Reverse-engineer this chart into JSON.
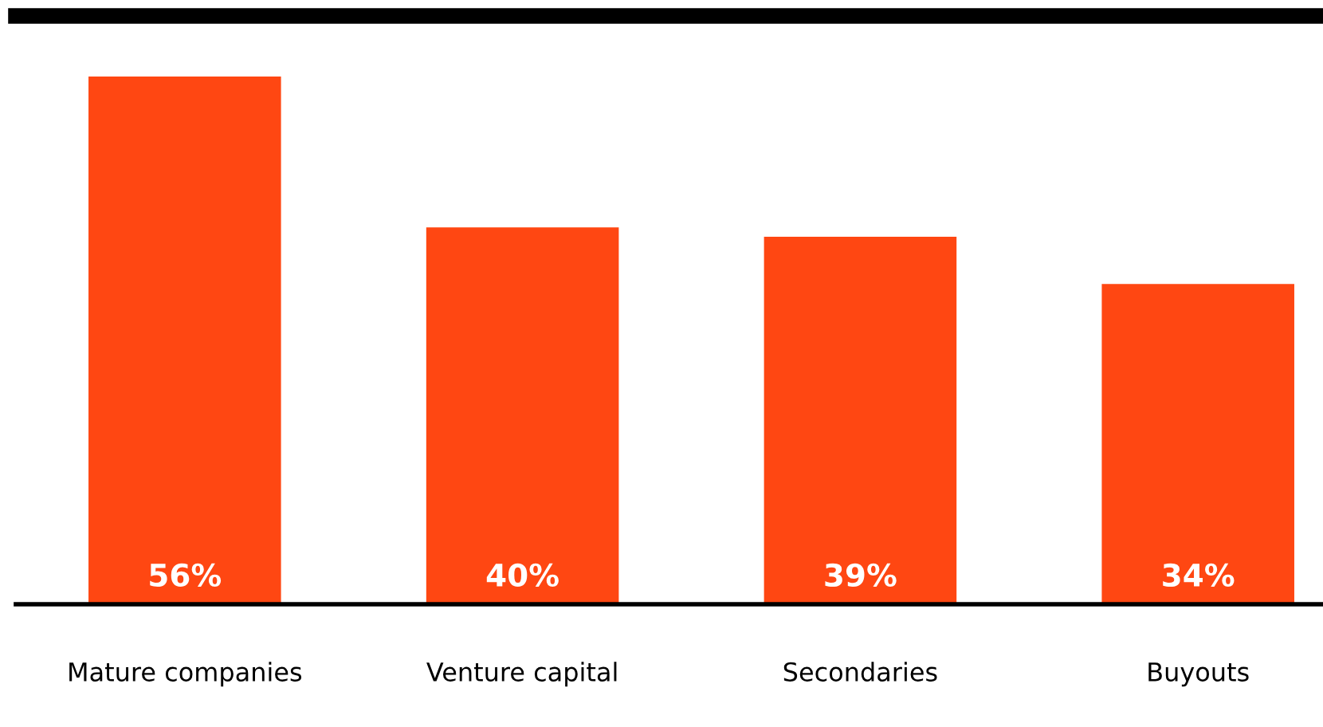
{
  "chart_data": {
    "type": "bar",
    "categories": [
      "Mature companies",
      "Venture capital",
      "Secondaries",
      "Buyouts"
    ],
    "values": [
      56,
      40,
      39,
      34
    ],
    "value_labels": [
      "56%",
      "40%",
      "39%",
      "34%"
    ],
    "color": "#ff4712"
  }
}
